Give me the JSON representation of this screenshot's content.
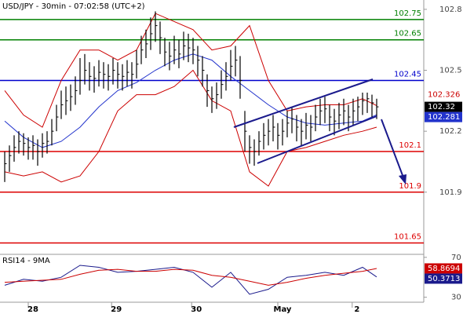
{
  "chart_data": [
    {
      "type": "ohlc",
      "title": "USD/JPY - 30min - 07:02:58 (UTC+2)",
      "color": "#000000",
      "x": [
        0,
        1,
        2,
        3,
        4,
        5,
        6,
        7,
        8,
        9,
        10,
        11,
        12,
        13,
        14,
        15,
        16,
        17,
        18,
        19,
        20,
        21,
        22,
        23,
        24,
        25,
        26,
        27,
        28,
        29,
        30,
        31,
        32,
        33,
        34,
        35,
        36,
        37,
        38,
        39,
        40,
        41,
        42,
        43,
        44,
        45,
        46,
        47,
        48,
        49,
        50,
        51,
        52,
        53,
        54,
        55,
        56,
        57,
        58,
        59,
        60,
        61,
        62,
        63,
        64,
        65,
        66,
        67,
        68,
        69,
        70,
        71,
        72,
        73,
        74,
        75,
        76,
        77,
        78,
        79
      ],
      "high": [
        102.1,
        102.13,
        102.18,
        102.2,
        102.19,
        102.17,
        102.18,
        102.16,
        102.19,
        102.2,
        102.26,
        102.33,
        102.4,
        102.42,
        102.43,
        102.47,
        102.56,
        102.58,
        102.54,
        102.52,
        102.55,
        102.54,
        102.53,
        102.56,
        102.54,
        102.53,
        102.55,
        102.54,
        102.6,
        102.67,
        102.7,
        102.76,
        102.79,
        102.74,
        102.66,
        102.64,
        102.67,
        102.65,
        102.69,
        102.68,
        102.66,
        102.62,
        102.57,
        102.48,
        102.42,
        102.44,
        102.5,
        102.54,
        102.6,
        102.62,
        102.57,
        102.3,
        102.18,
        102.16,
        102.2,
        102.24,
        102.26,
        102.28,
        102.24,
        102.26,
        102.3,
        102.32,
        102.28,
        102.26,
        102.29,
        102.28,
        102.33,
        102.36,
        102.37,
        102.33,
        102.31,
        102.34,
        102.36,
        102.33,
        102.36,
        102.37,
        102.39,
        102.39,
        102.38,
        102.36
      ],
      "low": [
        101.95,
        102.0,
        102.05,
        102.09,
        102.08,
        102.06,
        102.06,
        102.03,
        102.07,
        102.09,
        102.13,
        102.2,
        102.26,
        102.28,
        102.3,
        102.33,
        102.38,
        102.43,
        102.4,
        102.39,
        102.42,
        102.41,
        102.4,
        102.43,
        102.41,
        102.4,
        102.42,
        102.41,
        102.46,
        102.53,
        102.56,
        102.6,
        102.64,
        102.58,
        102.52,
        102.5,
        102.53,
        102.51,
        102.55,
        102.54,
        102.53,
        102.47,
        102.42,
        102.32,
        102.29,
        102.31,
        102.36,
        102.4,
        102.45,
        102.47,
        102.36,
        102.1,
        102.04,
        102.03,
        102.08,
        102.11,
        102.13,
        102.15,
        102.11,
        102.13,
        102.17,
        102.19,
        102.15,
        102.13,
        102.16,
        102.15,
        102.2,
        102.23,
        102.24,
        102.2,
        102.18,
        102.21,
        102.23,
        102.2,
        102.23,
        102.25,
        102.28,
        102.29,
        102.27,
        102.26
      ],
      "close": [
        102.04,
        102.08,
        102.12,
        102.15,
        102.14,
        102.12,
        102.13,
        102.1,
        102.14,
        102.15,
        102.2,
        102.27,
        102.33,
        102.35,
        102.37,
        102.4,
        102.45,
        102.5,
        102.47,
        102.46,
        102.49,
        102.48,
        102.47,
        102.5,
        102.48,
        102.47,
        102.49,
        102.48,
        102.53,
        102.6,
        102.63,
        102.68,
        102.72,
        102.66,
        102.59,
        102.57,
        102.6,
        102.58,
        102.62,
        102.61,
        102.6,
        102.55,
        102.5,
        102.4,
        102.36,
        102.38,
        102.43,
        102.47,
        102.52,
        102.55,
        102.45,
        102.2,
        102.12,
        102.1,
        102.15,
        102.18,
        102.2,
        102.22,
        102.18,
        102.2,
        102.24,
        102.26,
        102.22,
        102.2,
        102.23,
        102.22,
        102.27,
        102.3,
        102.31,
        102.27,
        102.25,
        102.28,
        102.3,
        102.27,
        102.3,
        102.32,
        102.35,
        102.36,
        102.34,
        102.32
      ],
      "overlays": [
        {
          "color": "#cc0000",
          "x": [
            0,
            4,
            8,
            12,
            16,
            20,
            24,
            28,
            32,
            36,
            40,
            44,
            48,
            52,
            56,
            60,
            64,
            68,
            72,
            76,
            79
          ],
          "values": [
            102.4,
            102.28,
            102.22,
            102.45,
            102.6,
            102.6,
            102.55,
            102.6,
            102.78,
            102.74,
            102.7,
            102.6,
            102.62,
            102.72,
            102.45,
            102.3,
            102.32,
            102.33,
            102.33,
            102.36,
            102.326
          ]
        },
        {
          "color": "#cc0000",
          "x": [
            0,
            4,
            8,
            12,
            16,
            20,
            24,
            28,
            32,
            36,
            40,
            44,
            48,
            52,
            56,
            60,
            64,
            68,
            72,
            76,
            79
          ],
          "values": [
            102.0,
            101.98,
            102.0,
            101.95,
            101.98,
            102.1,
            102.3,
            102.38,
            102.38,
            102.42,
            102.5,
            102.35,
            102.3,
            102.0,
            101.93,
            102.1,
            102.12,
            102.15,
            102.18,
            102.2,
            102.22
          ]
        },
        {
          "color": "#2233cc",
          "x": [
            0,
            4,
            8,
            12,
            16,
            20,
            24,
            28,
            32,
            36,
            40,
            44,
            48,
            52,
            56,
            60,
            64,
            68,
            72,
            76,
            79
          ],
          "values": [
            102.25,
            102.17,
            102.12,
            102.15,
            102.22,
            102.32,
            102.4,
            102.44,
            102.5,
            102.55,
            102.58,
            102.55,
            102.47,
            102.4,
            102.33,
            102.27,
            102.24,
            102.23,
            102.24,
            102.25,
            102.281
          ]
        }
      ],
      "levels": [
        {
          "value": 102.75,
          "color": "#008000"
        },
        {
          "value": 102.65,
          "color": "#008000"
        },
        {
          "value": 102.45,
          "color": "#0000cc"
        },
        {
          "value": 102.1,
          "color": "#dd0000"
        },
        {
          "value": 101.9,
          "color": "#dd0000"
        },
        {
          "value": 101.65,
          "color": "#dd0000"
        }
      ],
      "xlim": [
        -1,
        89
      ],
      "xticks": [
        {
          "value": 6,
          "label": "28"
        },
        {
          "value": 23.7,
          "label": "29"
        },
        {
          "value": 40.7,
          "label": "30"
        },
        {
          "value": 59,
          "label": "May"
        },
        {
          "value": 74.8,
          "label": "2"
        }
      ],
      "ylim": [
        101.59,
        102.846
      ],
      "yticks": [
        102.8,
        102.5,
        102.2,
        101.9
      ]
    },
    {
      "type": "line",
      "title": "RSI14 - 9MA",
      "series": [
        {
          "color": "#1a1a8c",
          "x": [
            0,
            4,
            8,
            12,
            16,
            20,
            24,
            28,
            32,
            36,
            40,
            44,
            48,
            52,
            56,
            60,
            64,
            68,
            72,
            76,
            79
          ],
          "values": [
            42,
            48,
            46,
            50,
            62,
            60,
            55,
            56,
            58,
            60,
            55,
            40,
            55,
            33,
            38,
            50,
            52,
            55,
            52,
            60,
            50.3713
          ]
        },
        {
          "color": "#cc0000",
          "x": [
            0,
            4,
            8,
            12,
            16,
            20,
            24,
            28,
            32,
            36,
            40,
            44,
            48,
            52,
            56,
            60,
            64,
            68,
            72,
            76,
            79
          ],
          "values": [
            45,
            46,
            47,
            48,
            53,
            57,
            58,
            56,
            56,
            58,
            57,
            52,
            50,
            46,
            42,
            45,
            49,
            52,
            54,
            56,
            58.8694
          ]
        }
      ],
      "xlim": [
        -1,
        89
      ],
      "ylim": [
        25,
        73
      ],
      "yticks": [
        70,
        30
      ]
    }
  ]
}
